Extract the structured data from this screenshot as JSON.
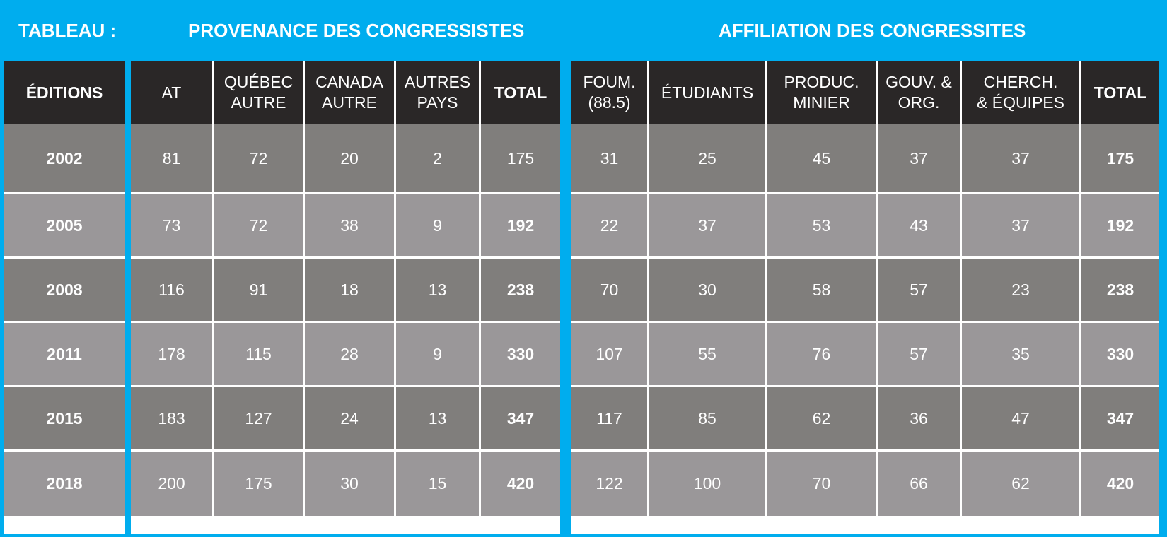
{
  "title": {
    "label": "TABLEAU :",
    "provenance": "PROVENANCE DES CONGRESSISTES",
    "affiliation": "AFFILIATION DES CONGRESSITES"
  },
  "headers": {
    "editions": "ÉDITIONS",
    "provenance": [
      [
        "AT"
      ],
      [
        "QUÉBEC",
        "AUTRE"
      ],
      [
        "CANADA",
        "AUTRE"
      ],
      [
        "AUTRES",
        "PAYS"
      ],
      [
        "TOTAL"
      ]
    ],
    "affiliation": [
      [
        "FOUM.",
        "(88.5)"
      ],
      [
        "ÉTUDIANTS"
      ],
      [
        "PRODUC.",
        "MINIER"
      ],
      [
        "GOUV. &",
        "ORG."
      ],
      [
        "CHERCH.",
        "& ÉQUIPES"
      ],
      [
        "TOTAL"
      ]
    ]
  },
  "colors": {
    "background": "#00adee",
    "header": "#2a2727",
    "row_dark": "#807e7c",
    "row_light": "#9a9799",
    "grid": "#ffffff"
  },
  "chart_data": {
    "type": "table",
    "editions": [
      "2002",
      "2005",
      "2008",
      "2011",
      "2015",
      "2018"
    ],
    "provenance": {
      "columns": [
        "AT",
        "QUÉBEC AUTRE",
        "CANADA AUTRE",
        "AUTRES PAYS",
        "TOTAL"
      ],
      "rows": [
        [
          "81",
          "72",
          "20",
          "2",
          "175"
        ],
        [
          "73",
          "72",
          "38",
          "9",
          "192"
        ],
        [
          "116",
          "91",
          "18",
          "13",
          "238"
        ],
        [
          "178",
          "115",
          "28",
          "9",
          "330"
        ],
        [
          "183",
          "127",
          "24",
          "13",
          "347"
        ],
        [
          "200",
          "175",
          "30",
          "15",
          "420"
        ]
      ]
    },
    "affiliation": {
      "columns": [
        "FOUM. (88.5)",
        "ÉTUDIANTS",
        "PRODUC. MINIER",
        "GOUV. & ORG.",
        "CHERCH. & ÉQUIPES",
        "TOTAL"
      ],
      "rows": [
        [
          "31",
          "25",
          "45",
          "37",
          "37",
          "175"
        ],
        [
          "22",
          "37",
          "53",
          "43",
          "37",
          "192"
        ],
        [
          "70",
          "30",
          "58",
          "57",
          "23",
          "238"
        ],
        [
          "107",
          "55",
          "76",
          "57",
          "35",
          "330"
        ],
        [
          "117",
          "85",
          "62",
          "36",
          "47",
          "347"
        ],
        [
          "122",
          "100",
          "70",
          "66",
          "62",
          "420"
        ]
      ]
    }
  }
}
